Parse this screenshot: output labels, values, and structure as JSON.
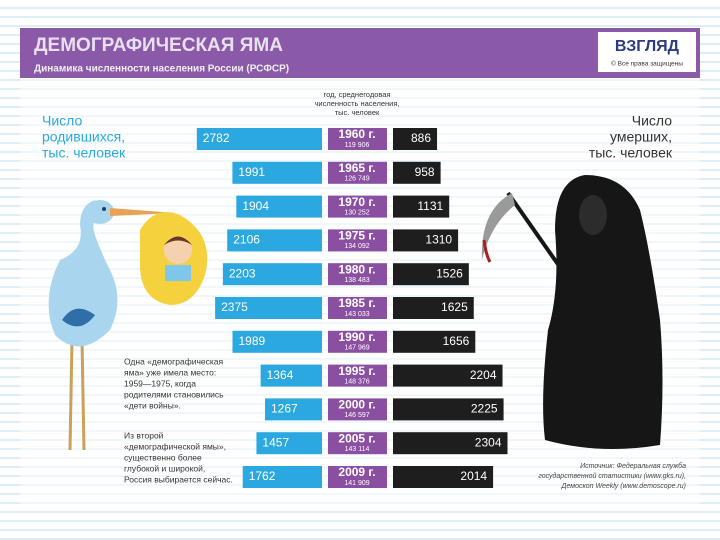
{
  "chart_data": {
    "type": "butterfly",
    "title": "ДЕМОГРАФИЧЕСКАЯ ЯМА",
    "subtitle": "Динамика численности населения России (РСФСР)",
    "logo": "ВЗГЛЯД",
    "logo_note": "© Все права защищены",
    "center_label": [
      "год, среднегодовая",
      "численность населения,",
      "тыс. человек"
    ],
    "left_label": [
      "Число",
      "родившихся,",
      "тыс. человек"
    ],
    "right_label": [
      "Число",
      "умерших,",
      "тыс. человек"
    ],
    "categories": [
      "1960 г.",
      "1965 г.",
      "1970 г.",
      "1975 г.",
      "1980 г.",
      "1985 г.",
      "1990 г.",
      "1995 г.",
      "2000 г.",
      "2005 г.",
      "2009 г."
    ],
    "population": {
      "values": [
        119906,
        126749,
        130252,
        134092,
        138483,
        143033,
        147969,
        148376,
        146597,
        143114,
        141909
      ],
      "value_labels": [
        "119 906",
        "126 749",
        "130 252",
        "134 092",
        "138 483",
        "143 033",
        "147 969",
        "148 376",
        "146 597",
        "143 114",
        "141 909"
      ]
    },
    "series": [
      {
        "name": "Число родившихся",
        "color": "#2aa8df",
        "values": [
          2782,
          1991,
          1904,
          2106,
          2203,
          2375,
          1989,
          1364,
          1267,
          1457,
          1762
        ]
      },
      {
        "name": "Число умерших",
        "color": "#1e1e1e",
        "values": [
          886,
          958,
          1131,
          1310,
          1526,
          1625,
          1656,
          2204,
          2225,
          2304,
          2014
        ]
      }
    ],
    "notes": [
      [
        "Одна «демографическая",
        "яма» уже имела место:",
        "1959—1975, когда",
        "родителями становились",
        "«дети войны»."
      ],
      [
        "Из второй",
        "«демографической ямы»,",
        "существенно более",
        "глубокой и широкой,",
        "Россия выбирается сейчас."
      ]
    ],
    "source": [
      "Источник: Федеральная служба",
      "государственной статистики (www.gks.ru),",
      "Демоскоп Weekly (www.demoscope.ru)"
    ]
  }
}
